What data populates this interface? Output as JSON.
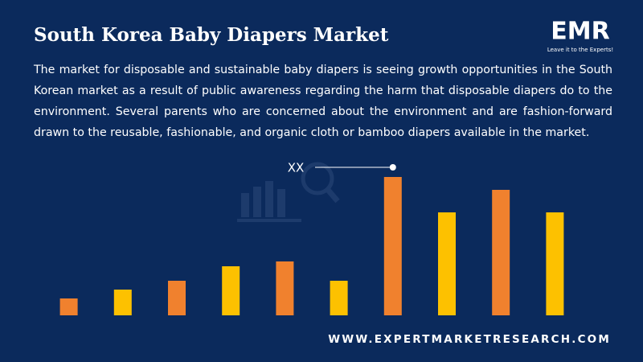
{
  "chart_data": {
    "type": "bar",
    "title": "South Korea Baby Diapers Market",
    "subtitle": "The market for disposable and sustainable baby diapers is seeing growth opportunities in the South Korean market as a result of public awareness regarding the harm that disposable diapers do to the environment. Several parents who are concerned about the environment and are fashion-forward drawn to the reusable, fashionable, and organic cloth or bamboo diapers available in the market.",
    "values": [
      21,
      32,
      43,
      61,
      67,
      43,
      172,
      128,
      156,
      128
    ],
    "colors": [
      "#f0812e",
      "#fdc100",
      "#f0812e",
      "#fdc100",
      "#f0812e",
      "#fdc100",
      "#f0812e",
      "#fdc100",
      "#f0812e",
      "#fdc100"
    ],
    "ylim": [
      0,
      180
    ],
    "annotation": "XX",
    "logo": "EMR",
    "tagline": "Leave it to the Experts!",
    "website": "WWW.EXPERTMARKETRESEARCH.COM"
  }
}
